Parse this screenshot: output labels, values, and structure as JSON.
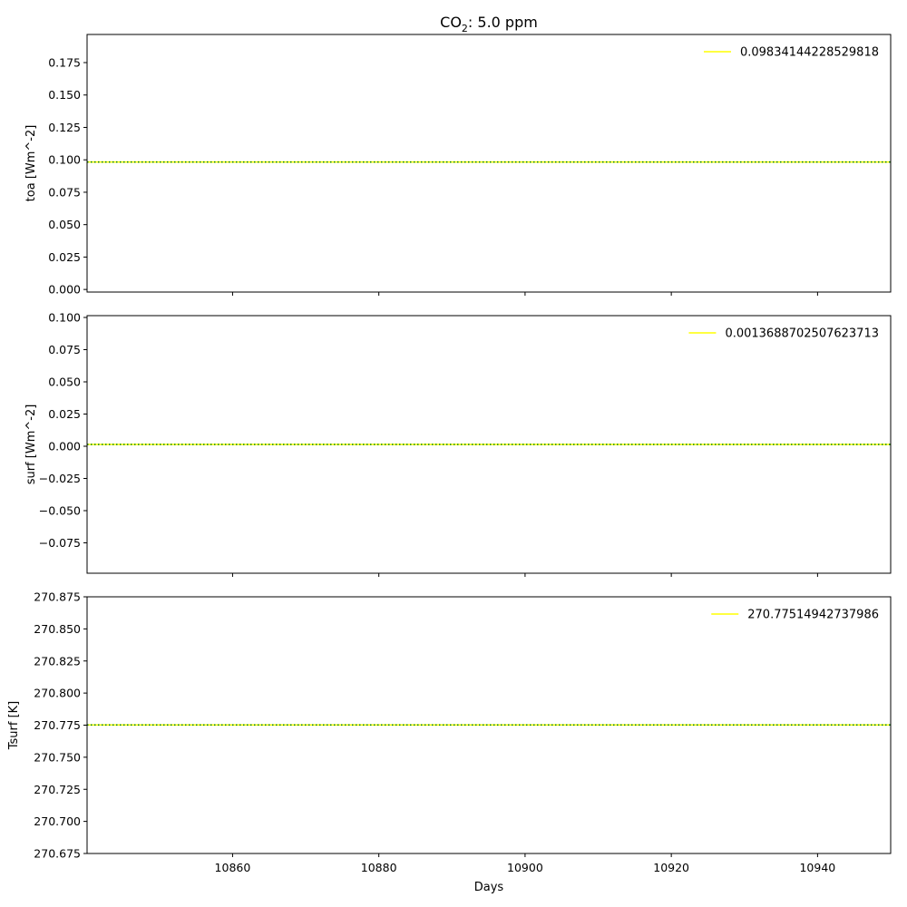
{
  "title": {
    "prefix": "CO",
    "sub": "2",
    "suffix": ": 5.0 ppm"
  },
  "xlabel": "Days",
  "colors": {
    "series_line": "#ffff00",
    "mean_line": "#008000",
    "axes": "#000000"
  },
  "chart_data": [
    {
      "type": "line",
      "ylabel": "toa [Wm^-2]",
      "xlim": [
        10840.1,
        10950
      ],
      "ylim": [
        -0.002,
        0.1967
      ],
      "yticks": [
        0.0,
        0.025,
        0.05,
        0.075,
        0.1,
        0.125,
        0.15,
        0.175
      ],
      "ytick_labels": [
        "0.000",
        "0.025",
        "0.050",
        "0.075",
        "0.100",
        "0.125",
        "0.150",
        "0.175"
      ],
      "xticks": [
        10860,
        10880,
        10900,
        10920,
        10940
      ],
      "xtick_labels": [
        "",
        "",
        "",
        "",
        ""
      ],
      "series": [
        {
          "name": "0.09834144228529818",
          "values": [
            0.09834144228529818,
            0.09834144228529818
          ]
        }
      ],
      "x": [
        10840.1,
        10950
      ],
      "mean": 0.09834144228529818,
      "legend": "top-right",
      "grid": false
    },
    {
      "type": "line",
      "ylabel": "surf [Wm^-2]",
      "xlim": [
        10840.1,
        10950
      ],
      "ylim": [
        -0.0986,
        0.1014
      ],
      "yticks": [
        -0.075,
        -0.05,
        -0.025,
        0.0,
        0.025,
        0.05,
        0.075,
        0.1
      ],
      "ytick_labels": [
        "−0.075",
        "−0.050",
        "−0.025",
        "0.000",
        "0.025",
        "0.050",
        "0.075",
        "0.100"
      ],
      "xticks": [
        10860,
        10880,
        10900,
        10920,
        10940
      ],
      "xtick_labels": [
        "",
        "",
        "",
        "",
        ""
      ],
      "series": [
        {
          "name": "0.0013688702507623713",
          "values": [
            0.0013688702507623713,
            0.0013688702507623713
          ]
        }
      ],
      "x": [
        10840.1,
        10950
      ],
      "mean": 0.0013688702507623713,
      "legend": "top-right",
      "grid": false
    },
    {
      "type": "line",
      "ylabel": "Tsurf [K]",
      "xlim": [
        10840.1,
        10950
      ],
      "ylim": [
        270.675,
        270.875
      ],
      "yticks": [
        270.675,
        270.7,
        270.725,
        270.75,
        270.775,
        270.8,
        270.825,
        270.85,
        270.875
      ],
      "ytick_labels": [
        "270.675",
        "270.700",
        "270.725",
        "270.750",
        "270.775",
        "270.800",
        "270.825",
        "270.850",
        "270.875"
      ],
      "xticks": [
        10860,
        10880,
        10900,
        10920,
        10940
      ],
      "xtick_labels": [
        "10860",
        "10880",
        "10900",
        "10920",
        "10940"
      ],
      "series": [
        {
          "name": "270.77514942737986",
          "values": [
            270.77514942737986,
            270.77514942737986
          ]
        }
      ],
      "x": [
        10840.1,
        10950
      ],
      "mean": 270.77514942737986,
      "legend": "top-right",
      "grid": false
    }
  ]
}
